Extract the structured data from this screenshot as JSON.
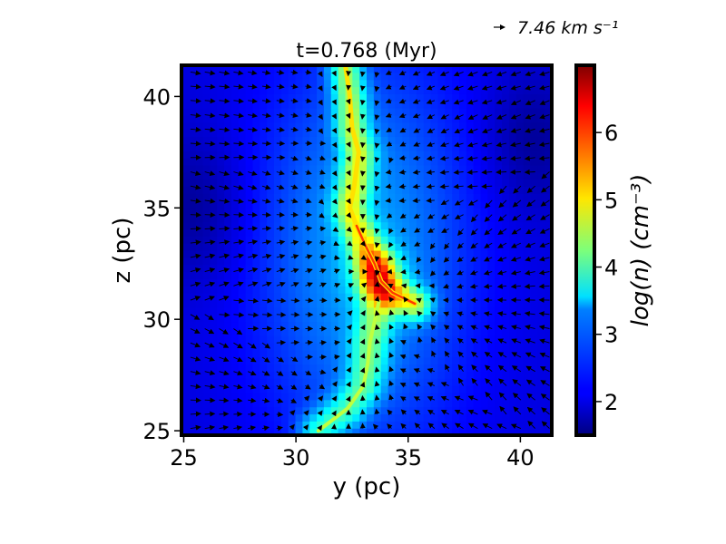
{
  "chart_data": {
    "type": "heatmap",
    "overlay": "quiver",
    "title": "t=0.768 (Myr)",
    "xlabel": "y (pc)",
    "ylabel": "z (pc)",
    "xlim": [
      24.9,
      41.4
    ],
    "ylim": [
      24.8,
      41.4
    ],
    "xticks": [
      25,
      30,
      35,
      40
    ],
    "yticks": [
      25,
      30,
      35,
      40
    ],
    "colorbar": {
      "label": "log(n) (cm⁻³)",
      "range": [
        1.5,
        7.0
      ],
      "ticks": [
        2,
        3,
        4,
        5,
        6
      ],
      "colormap": "jet"
    },
    "quiver_key": {
      "value": 7.46,
      "label": "7.46 km s⁻¹"
    },
    "density_features": {
      "background_log_n": 2.0,
      "filament_spine_yz": [
        [
          32.2,
          41.4
        ],
        [
          32.4,
          40.0
        ],
        [
          32.5,
          38.6
        ],
        [
          32.8,
          37.5
        ],
        [
          32.6,
          36.0
        ],
        [
          32.4,
          35.0
        ],
        [
          32.7,
          34.2
        ],
        [
          33.1,
          33.3
        ],
        [
          33.5,
          32.5
        ],
        [
          33.8,
          31.7
        ],
        [
          34.3,
          31.2
        ],
        [
          34.9,
          30.9
        ],
        [
          35.3,
          30.7
        ]
      ],
      "southern_stream_yz": [
        [
          33.7,
          30.8
        ],
        [
          33.5,
          29.9
        ],
        [
          33.3,
          29.0
        ],
        [
          33.2,
          28.0
        ],
        [
          33.0,
          27.0
        ],
        [
          32.3,
          26.0
        ],
        [
          31.0,
          25.0
        ]
      ],
      "peak_log_n": 6.8,
      "peak_location_yz": [
        33.6,
        32.1
      ]
    },
    "velocity_field": {
      "grid_spacing_pc": 0.64,
      "description_free": true
    }
  }
}
